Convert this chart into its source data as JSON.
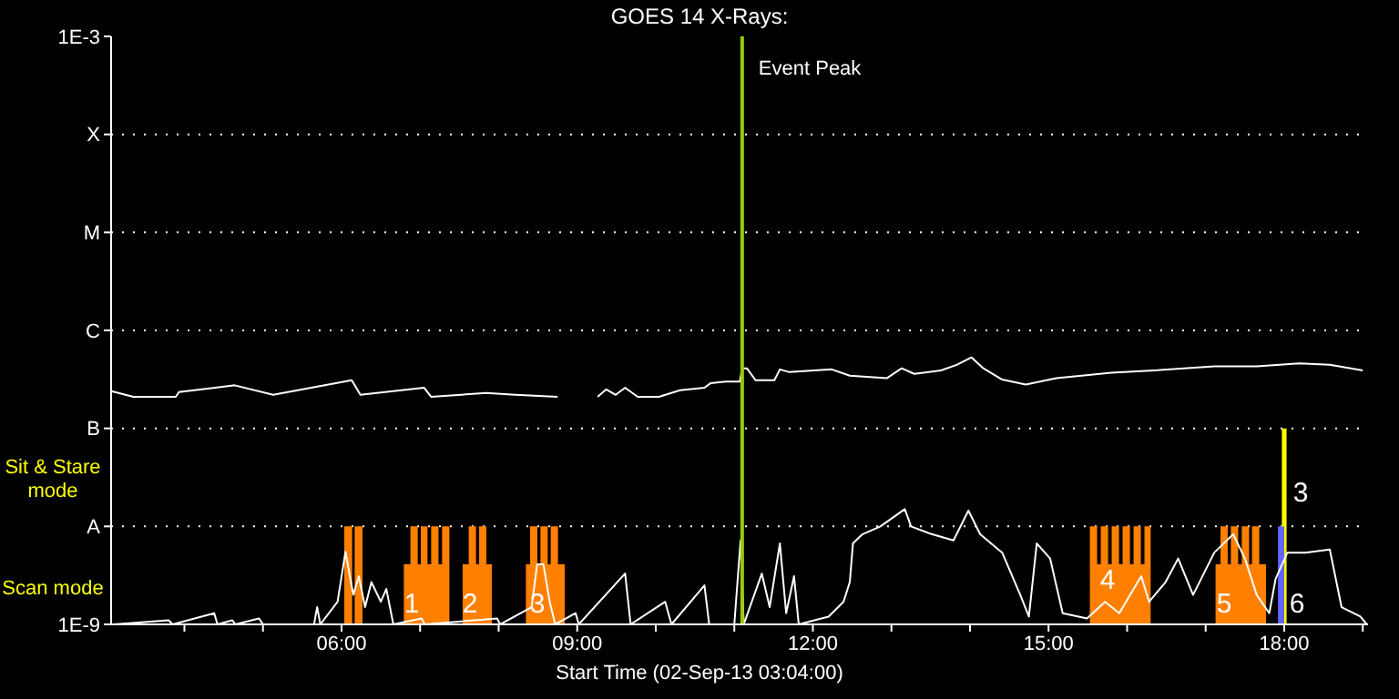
{
  "chart_data": {
    "type": "line",
    "title": "GOES 14 X-Rays:",
    "xlabel": "Start Time (02-Sep-13 03:04:00)",
    "xlim": [
      3.067,
      19.067
    ],
    "xticks": [
      {
        "value": 4,
        "label": null
      },
      {
        "value": 5,
        "label": null
      },
      {
        "value": 6,
        "label": "06:00"
      },
      {
        "value": 7,
        "label": null
      },
      {
        "value": 8,
        "label": null
      },
      {
        "value": 9,
        "label": "09:00"
      },
      {
        "value": 10,
        "label": null
      },
      {
        "value": 11,
        "label": null
      },
      {
        "value": 12,
        "label": "12:00"
      },
      {
        "value": 13,
        "label": null
      },
      {
        "value": 14,
        "label": null
      },
      {
        "value": 15,
        "label": "15:00"
      },
      {
        "value": 16,
        "label": null
      },
      {
        "value": 17,
        "label": null
      },
      {
        "value": 18,
        "label": "18:00"
      },
      {
        "value": 19,
        "label": null
      }
    ],
    "ylim": [
      1e-09,
      0.001
    ],
    "log": "y",
    "yticks": [
      {
        "value": 1e-09,
        "label": "1E-9"
      },
      {
        "value": 1e-08,
        "label": "A"
      },
      {
        "value": 1e-07,
        "label": "B"
      },
      {
        "value": 1e-06,
        "label": "C"
      },
      {
        "value": 1e-05,
        "label": "M"
      },
      {
        "value": 0.0001,
        "label": "X"
      },
      {
        "value": 0.001,
        "label": "1E-3"
      }
    ],
    "grid": "y",
    "series": [
      {
        "type": "area",
        "color": "#ff8000",
        "x": [
          6.035,
          6.035,
          6.135,
          6.135,
          6.167,
          6.167,
          6.267,
          6.267,
          6.793,
          6.793,
          6.877,
          6.877,
          6.97,
          6.97,
          7.009,
          7.009,
          7.095,
          7.095,
          7.141,
          7.141,
          7.234,
          7.234,
          7.28,
          7.28,
          7.373,
          7.373,
          7.542,
          7.542,
          7.619,
          7.619,
          7.712,
          7.712,
          7.751,
          7.751,
          7.844,
          7.844,
          7.913,
          7.913,
          8.347,
          8.347,
          8.4,
          8.4,
          8.493,
          8.493,
          8.532,
          8.532,
          8.625,
          8.625,
          8.662,
          8.662,
          8.755,
          8.755,
          8.841,
          8.841,
          15.526,
          15.526,
          15.619,
          15.619,
          15.665,
          15.665,
          15.758,
          15.758,
          15.804,
          15.804,
          15.897,
          15.897,
          15.943,
          15.943,
          16.036,
          16.036,
          16.082,
          16.082,
          16.175,
          16.175,
          16.221,
          16.221,
          16.3,
          16.3,
          17.126,
          17.126,
          17.189,
          17.189,
          17.281,
          17.281,
          17.321,
          17.321,
          17.414,
          17.414,
          17.46,
          17.46,
          17.553,
          17.553,
          17.59,
          17.59,
          17.683,
          17.683,
          17.769,
          17.769
        ],
        "values": [
          1e-09,
          1e-08,
          1e-08,
          1e-09,
          1e-09,
          1e-08,
          1e-08,
          1e-09,
          1e-09,
          4.1e-09,
          4.1e-09,
          1e-08,
          1e-08,
          4.1e-09,
          4.1e-09,
          1e-08,
          1e-08,
          4.1e-09,
          4.1e-09,
          1e-08,
          1e-08,
          4.1e-09,
          4.1e-09,
          1e-08,
          1e-08,
          1e-09,
          1e-09,
          4.1e-09,
          4.1e-09,
          1e-08,
          1e-08,
          4.1e-09,
          4.1e-09,
          1e-08,
          1e-08,
          4.1e-09,
          4.1e-09,
          1e-09,
          1e-09,
          4.1e-09,
          4.1e-09,
          1e-08,
          1e-08,
          4.1e-09,
          4.1e-09,
          1e-08,
          1e-08,
          4.1e-09,
          4.1e-09,
          1e-08,
          1e-08,
          4.1e-09,
          4.1e-09,
          1e-09,
          1e-09,
          1e-08,
          1e-08,
          4.1e-09,
          4.1e-09,
          1e-08,
          1e-08,
          4.1e-09,
          4.1e-09,
          1e-08,
          1e-08,
          4.1e-09,
          4.1e-09,
          1e-08,
          1e-08,
          4.1e-09,
          4.1e-09,
          1e-08,
          1e-08,
          4.1e-09,
          4.1e-09,
          1e-08,
          1e-08,
          1e-09,
          1e-09,
          4.1e-09,
          4.1e-09,
          1e-08,
          1e-08,
          4.1e-09,
          4.1e-09,
          1e-08,
          1e-08,
          4.1e-09,
          4.1e-09,
          1e-08,
          1e-08,
          4.1e-09,
          4.1e-09,
          1e-08,
          1e-08,
          4.1e-09,
          4.1e-09,
          1e-09
        ]
      },
      {
        "type": "area",
        "color": "#ffff00",
        "x": [
          17.97,
          17.97,
          18.03,
          18.03
        ],
        "values": [
          1e-09,
          1e-07,
          1e-07,
          1e-09
        ]
      },
      {
        "type": "area",
        "color": "#6464ff",
        "x": [
          17.92,
          17.92,
          18.0,
          18.0
        ],
        "values": [
          1e-09,
          1e-08,
          1e-08,
          1e-09
        ]
      },
      {
        "color": "#ffffff",
        "x": [
          3.07,
          3.35,
          3.89,
          3.93,
          4.39,
          4.64,
          5.13,
          6.13,
          6.24,
          7.05,
          7.14,
          7.84,
          8.21,
          8.75,
          8.9,
          9.26,
          9.37,
          9.49,
          9.61,
          9.77,
          10.04,
          10.31,
          10.62,
          10.7,
          10.89,
          11.07,
          11.1,
          11.16,
          11.27,
          11.51,
          11.58,
          11.7,
          12.24,
          12.47,
          12.94,
          13.13,
          13.29,
          13.63,
          13.83,
          14.02,
          14.17,
          14.41,
          14.71,
          15.1,
          15.8,
          16.34,
          17.11,
          17.65,
          18.19,
          18.58,
          19.0
        ],
        "values": [
          2.4e-07,
          2.1e-07,
          2.1e-07,
          2.35e-07,
          2.6e-07,
          2.75e-07,
          2.2e-07,
          3.1e-07,
          2.2e-07,
          2.6e-07,
          2.1e-07,
          2.3e-07,
          2.2e-07,
          2.1e-07,
          null,
          2.1e-07,
          2.5e-07,
          2.2e-07,
          2.6e-07,
          2.1e-07,
          2.1e-07,
          2.45e-07,
          2.6e-07,
          2.9e-07,
          3e-07,
          3e-07,
          4.1e-07,
          4.1e-07,
          3.1e-07,
          3.1e-07,
          4e-07,
          3.75e-07,
          4e-07,
          3.45e-07,
          3.25e-07,
          4.1e-07,
          3.6e-07,
          3.9e-07,
          4.45e-07,
          5.3e-07,
          4.1e-07,
          3.15e-07,
          2.8e-07,
          3.25e-07,
          3.7e-07,
          3.9e-07,
          4.3e-07,
          4.3e-07,
          4.6e-07,
          4.45e-07,
          3.9e-07
        ]
      },
      {
        "color": "#ffffff",
        "x": [
          3.1,
          3.8,
          3.85,
          4.38,
          4.42,
          4.61,
          4.65,
          4.95,
          5.0,
          5.65,
          5.69,
          5.73,
          5.95,
          6.05,
          6.15,
          6.22,
          6.3,
          6.38,
          6.5,
          6.57,
          6.66,
          7.02,
          7.06,
          7.98,
          8.02,
          8.42,
          8.49,
          8.57,
          8.65,
          8.72,
          8.98,
          9.02,
          9.61,
          9.68,
          10.12,
          10.2,
          10.62,
          10.68,
          11.0,
          11.08,
          11.12,
          11.35,
          11.45,
          11.58,
          11.66,
          11.76,
          11.82,
          12.2,
          12.39,
          12.47,
          12.51,
          12.63,
          12.86,
          13.17,
          13.25,
          13.48,
          13.79,
          13.98,
          14.13,
          14.41,
          14.64,
          14.75,
          14.85,
          15.02,
          15.18,
          15.49,
          15.72,
          15.9,
          16.18,
          16.28,
          16.49,
          16.65,
          16.84,
          17.11,
          17.35,
          17.5,
          17.65,
          17.81,
          17.89,
          18.04,
          18.27,
          18.58,
          18.73,
          18.97,
          19.05
        ],
        "values": [
          1e-09,
          1.1e-09,
          1e-09,
          1.3e-09,
          1e-09,
          1.1e-09,
          1e-09,
          1.15e-09,
          1e-09,
          1e-09,
          1.5e-09,
          1e-09,
          1.7e-09,
          5.5e-09,
          2e-09,
          3.1e-09,
          1.5e-09,
          2.7e-09,
          1.7e-09,
          2.3e-09,
          1e-09,
          1.15e-09,
          1e-09,
          1.15e-09,
          1e-09,
          1.5e-09,
          4.1e-09,
          4.1e-09,
          1.7e-09,
          1e-09,
          1.3e-09,
          1e-09,
          3.3e-09,
          1e-09,
          1.7e-09,
          1e-09,
          2.5e-09,
          1e-09,
          1e-09,
          7.2e-09,
          1e-09,
          3.3e-09,
          1.5e-09,
          6.7e-09,
          1.3e-09,
          3.1e-09,
          1e-09,
          1.2e-09,
          1.7e-09,
          2.7e-09,
          6.7e-09,
          8.3e-09,
          1e-08,
          1.5e-08,
          1e-08,
          8.5e-09,
          7.2e-09,
          1.45e-08,
          8.3e-09,
          5.4e-09,
          2e-09,
          1.2e-09,
          6.7e-09,
          4.7e-09,
          1.3e-09,
          1.15e-09,
          1.7e-09,
          1.3e-09,
          3.1e-09,
          1.7e-09,
          2.7e-09,
          4.7e-09,
          2e-09,
          5.4e-09,
          8.3e-09,
          4.7e-09,
          2e-09,
          1.3e-09,
          2.9e-09,
          5.4e-09,
          5.4e-09,
          5.8e-09,
          1.5e-09,
          1.2e-09,
          1e-09
        ]
      }
    ],
    "ref_lines": [
      {
        "axis": "x",
        "value": 11.1,
        "label": "Event Peak",
        "color": "#99cc00"
      }
    ],
    "annotations": [
      "Sit & Stare mode",
      "Scan mode",
      "1",
      "2",
      "3",
      "4",
      "5",
      "6",
      "3"
    ]
  }
}
